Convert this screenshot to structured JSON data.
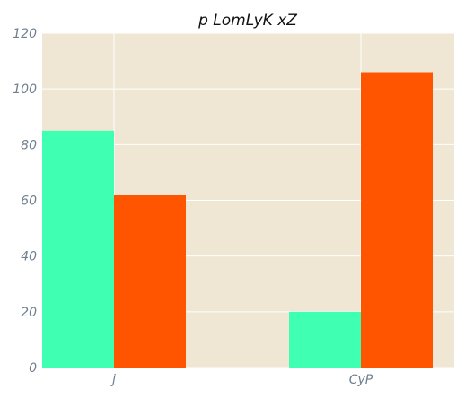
{
  "chart_data": {
    "type": "bar",
    "title": "p LomLyK xZ",
    "xlabel": "",
    "ylabel": "",
    "categories": [
      "j",
      "CyP"
    ],
    "series": [
      {
        "values": [
          85,
          20
        ],
        "color": "#3effb2"
      },
      {
        "values": [
          62,
          106
        ],
        "color": "#ff5500"
      }
    ],
    "ylim": [
      0,
      120
    ],
    "yticks": [
      0,
      20,
      40,
      60,
      80,
      100,
      120
    ],
    "grid": true,
    "legend": "none",
    "background_color": "#efe6d4"
  }
}
